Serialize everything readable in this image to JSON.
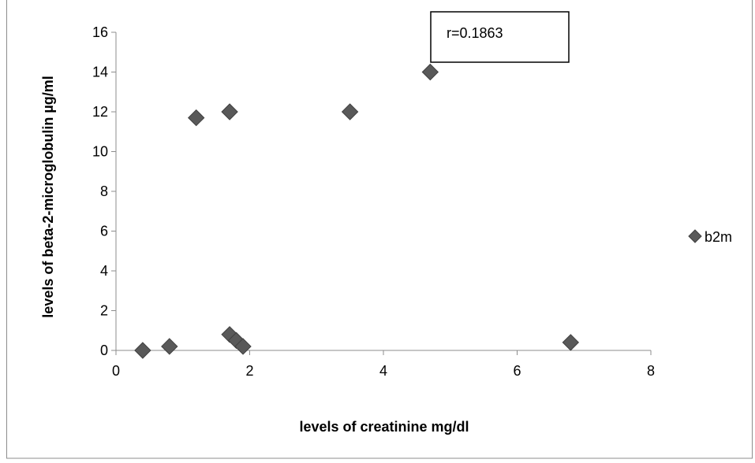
{
  "chart_data": {
    "type": "scatter",
    "title": "",
    "xlabel": "levels of creatinine mg/dl",
    "ylabel": "levels of beta-2-microglobulin µg/ml",
    "xlim": [
      0,
      8
    ],
    "ylim": [
      0,
      16
    ],
    "x_ticks": [
      0,
      2,
      4,
      6,
      8
    ],
    "y_ticks": [
      0,
      2,
      4,
      6,
      8,
      10,
      12,
      14,
      16
    ],
    "grid": false,
    "legend_position": "right",
    "series": [
      {
        "name": "b2m",
        "marker": "diamond",
        "color": "#595959",
        "points": [
          {
            "x": 0.4,
            "y": 0.0
          },
          {
            "x": 0.8,
            "y": 0.2
          },
          {
            "x": 1.2,
            "y": 11.7
          },
          {
            "x": 1.7,
            "y": 12.0
          },
          {
            "x": 1.7,
            "y": 0.8
          },
          {
            "x": 1.8,
            "y": 0.5
          },
          {
            "x": 1.9,
            "y": 0.2
          },
          {
            "x": 3.5,
            "y": 12.0
          },
          {
            "x": 4.7,
            "y": 14.0
          },
          {
            "x": 6.8,
            "y": 0.4
          }
        ]
      }
    ],
    "annotation": "r=0.1863"
  }
}
